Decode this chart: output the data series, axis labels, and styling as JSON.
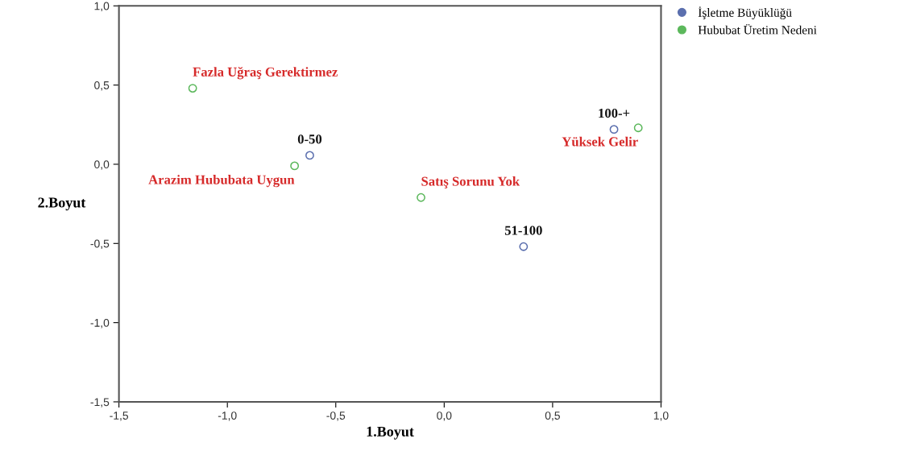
{
  "chart_data": {
    "type": "scatter",
    "xlabel": "1.Boyut",
    "ylabel": "2.Boyut",
    "series": [
      {
        "name": "İşletme Büyüklüğü",
        "color": "#5b6fae",
        "x": [
          -0.62,
          0.366,
          0.783
        ],
        "values": [
          0.056,
          -0.52,
          0.22
        ]
      },
      {
        "name": "Hububat Üretim Nedeni",
        "color": "#5cb85c",
        "x": [
          -1.16,
          -0.69,
          -0.107,
          0.895
        ],
        "values": [
          0.48,
          -0.01,
          -0.21,
          0.23
        ]
      }
    ],
    "annotations": [
      {
        "text": "0-50",
        "x": -0.62,
        "y": 0.056
      },
      {
        "text": "51-100",
        "x": 0.366,
        "y": -0.52
      },
      {
        "text": "100-+",
        "x": 0.783,
        "y": 0.22
      },
      {
        "text": "Fazla Uğraş Gerektirmez",
        "x": -1.16,
        "y": 0.48
      },
      {
        "text": "Arazim Hububata Uygun",
        "x": -0.69,
        "y": -0.01
      },
      {
        "text": "Satış Sorunu Yok",
        "x": -0.107,
        "y": -0.21
      },
      {
        "text": "Yüksek Gelir",
        "x": 0.895,
        "y": 0.23
      }
    ],
    "xlim": [
      -1.5,
      1.0
    ],
    "ylim": [
      -1.5,
      1.0
    ],
    "xticks": [
      {
        "value": -1.5,
        "label": "-1,5"
      },
      {
        "value": -1.0,
        "label": "-1,0"
      },
      {
        "value": -0.5,
        "label": "-0,5"
      },
      {
        "value": 0.0,
        "label": "0,0"
      },
      {
        "value": 0.5,
        "label": "0,5"
      },
      {
        "value": 1.0,
        "label": "1,0"
      }
    ],
    "yticks": [
      {
        "value": -1.5,
        "label": "-1,5"
      },
      {
        "value": -1.0,
        "label": "-1,0"
      },
      {
        "value": -0.5,
        "label": "-0,5"
      },
      {
        "value": 0.0,
        "label": "0,0"
      },
      {
        "value": 0.5,
        "label": "0,5"
      },
      {
        "value": 1.0,
        "label": "1,0"
      }
    ],
    "marker": "circle",
    "grid": false,
    "legend": "top right"
  }
}
